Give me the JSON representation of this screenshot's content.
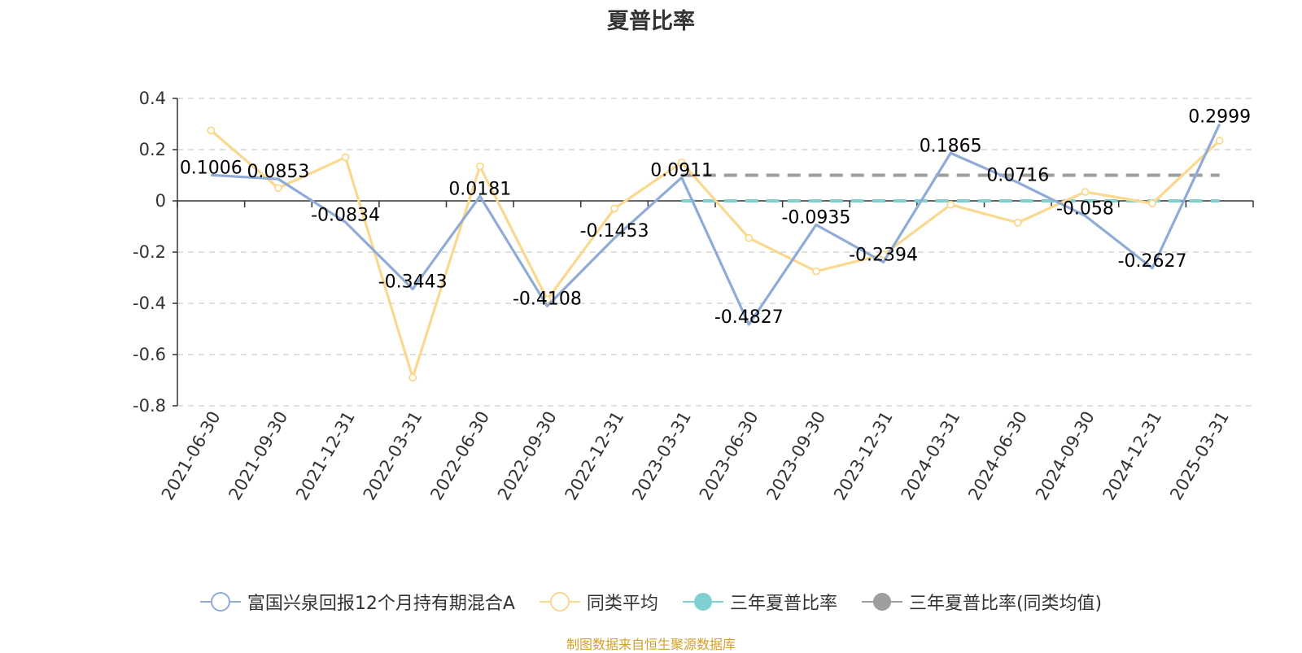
{
  "chart_data": {
    "type": "line",
    "title": "夏普比率",
    "categories": [
      "2021-06-30",
      "2021-09-30",
      "2021-12-31",
      "2022-03-31",
      "2022-06-30",
      "2022-09-30",
      "2022-12-31",
      "2023-03-31",
      "2023-06-30",
      "2023-09-30",
      "2023-12-31",
      "2024-03-31",
      "2024-06-30",
      "2024-09-30",
      "2024-12-31",
      "2025-03-31"
    ],
    "ylim": [
      -0.8,
      0.4
    ],
    "yticks": [
      0.4,
      0.2,
      0,
      -0.2,
      -0.4,
      -0.6,
      -0.8
    ],
    "ytick_labels": [
      "0.4",
      "0.2",
      "0",
      "-0.2",
      "-0.4",
      "-0.6",
      "-0.8"
    ],
    "grid": true,
    "legend_position": "bottom",
    "series": [
      {
        "name": "富国兴泉回报12个月持有期混合A",
        "color": "#8fabd6",
        "values": [
          0.1006,
          0.0853,
          -0.0834,
          -0.3443,
          0.0181,
          -0.4108,
          -0.1453,
          0.0911,
          -0.4827,
          -0.0935,
          -0.2394,
          0.1865,
          0.0716,
          -0.058,
          -0.2627,
          0.2999
        ],
        "data_labels": [
          "0.1006",
          "0.0853",
          "-0.0834",
          "-0.3443",
          "0.0181",
          "-0.4108",
          "-0.1453",
          "0.0911",
          "-0.4827",
          "-0.0935",
          "-0.2394",
          "0.1865",
          "0.0716",
          "-0.058",
          "-0.2627",
          "0.2999"
        ]
      },
      {
        "name": "同类平均",
        "color": "#fbd88f",
        "values": [
          0.275,
          0.05,
          0.17,
          -0.69,
          0.135,
          -0.385,
          -0.03,
          0.15,
          -0.145,
          -0.275,
          -0.21,
          -0.015,
          -0.085,
          0.035,
          -0.01,
          0.235
        ]
      },
      {
        "name": "三年夏普比率",
        "color": "#7fd1d1",
        "dashed": true,
        "start_category": "2023-03-31",
        "end_category": "2025-03-31",
        "value": 0.0
      },
      {
        "name": "三年夏普比率(同类均值)",
        "color": "#9e9e9e",
        "dashed": true,
        "start_category": "2023-03-31",
        "end_category": "2025-03-31",
        "value": 0.1
      }
    ]
  },
  "legend": {
    "items": [
      {
        "label": "富国兴泉回报12个月持有期混合A",
        "icon": "hollow-circle-line-icon",
        "color": "#8fabd6"
      },
      {
        "label": "同类平均",
        "icon": "hollow-circle-line-icon",
        "color": "#fbd88f"
      },
      {
        "label": "三年夏普比率",
        "icon": "filled-circle-line-icon",
        "color": "#7fd1d1"
      },
      {
        "label": "三年夏普比率(同类均值)",
        "icon": "filled-circle-line-icon",
        "color": "#9e9e9e"
      }
    ]
  },
  "footer": {
    "source_note": "制图数据来自恒生聚源数据库"
  }
}
